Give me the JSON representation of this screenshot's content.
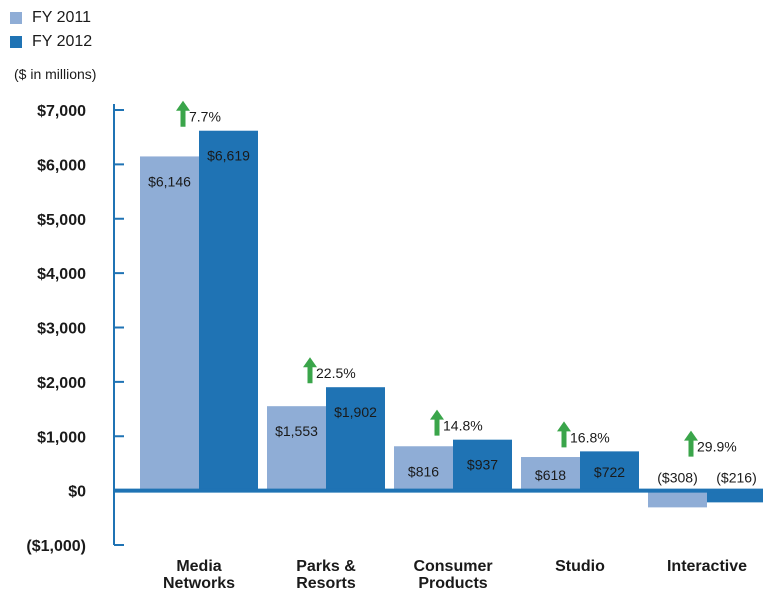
{
  "chart_data": {
    "type": "bar",
    "title": "",
    "units_note": "($ in millions)",
    "categories": [
      [
        "Media",
        "Networks"
      ],
      [
        "Parks &",
        "Resorts"
      ],
      [
        "Consumer",
        "Products"
      ],
      [
        "Studio"
      ],
      [
        "Interactive"
      ]
    ],
    "series": [
      {
        "name": "FY 2011",
        "color": "#8fadd6",
        "values": [
          6146,
          1553,
          816,
          618,
          -308
        ],
        "labels": [
          "$6,146",
          "$1,553",
          "$816",
          "$618",
          "($308)"
        ]
      },
      {
        "name": "FY 2012",
        "color": "#1f73b4",
        "values": [
          6619,
          1902,
          937,
          722,
          -216
        ],
        "labels": [
          "$6,619",
          "$1,902",
          "$937",
          "$722",
          "($216)"
        ]
      }
    ],
    "growth": [
      "7.7%",
      "22.5%",
      "14.8%",
      "16.8%",
      "29.9%"
    ],
    "growth_arrow": "up-arrow-icon",
    "growth_color": "#3aa54a",
    "ylim": [
      -1000,
      7000
    ],
    "yticks": [
      7000,
      6000,
      5000,
      4000,
      3000,
      2000,
      1000,
      0,
      -1000
    ],
    "ytick_labels": [
      "$7,000",
      "$6,000",
      "$5,000",
      "$4,000",
      "$3,000",
      "$2,000",
      "$1,000",
      "$0",
      "($1,000)"
    ],
    "axis_color": "#1f73b4",
    "legend_position": "top-left",
    "grid": false
  }
}
